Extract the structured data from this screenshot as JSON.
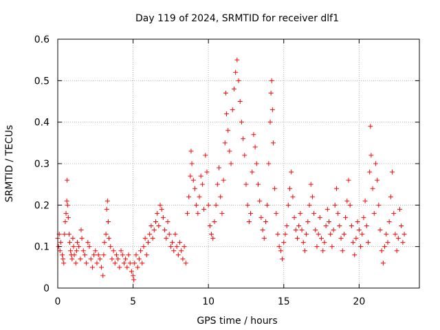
{
  "chart_data": {
    "type": "scatter",
    "title": "Day 119 of 2024, SRMTID for receiver dlf1",
    "xlabel": "GPS time / hours",
    "ylabel": "SRMTID / TECUs",
    "xlim": [
      0,
      24
    ],
    "ylim": [
      0,
      0.6
    ],
    "xticks": [
      0,
      5,
      10,
      15,
      20
    ],
    "xtick_labels": [
      "0",
      "5",
      "10",
      "15",
      "20"
    ],
    "yticks": [
      0,
      0.1,
      0.2,
      0.3,
      0.4,
      0.5,
      0.6
    ],
    "ytick_labels": [
      "0",
      "0.1",
      "0.2",
      "0.3",
      "0.4",
      "0.5",
      "0.6"
    ],
    "grid": true,
    "marker": "+",
    "color": "#ff0000",
    "x_range_of_data": [
      0,
      23
    ],
    "series": [
      {
        "name": "SRMTID",
        "points": [
          [
            0.0,
            0.12
          ],
          [
            0.05,
            0.1
          ],
          [
            0.1,
            0.13
          ],
          [
            0.15,
            0.09
          ],
          [
            0.2,
            0.11
          ],
          [
            0.3,
            0.08
          ],
          [
            0.35,
            0.07
          ],
          [
            0.4,
            0.06
          ],
          [
            0.45,
            0.13
          ],
          [
            0.5,
            0.16
          ],
          [
            0.55,
            0.18
          ],
          [
            0.6,
            0.21
          ],
          [
            0.62,
            0.26
          ],
          [
            0.65,
            0.2
          ],
          [
            0.7,
            0.17
          ],
          [
            0.75,
            0.13
          ],
          [
            0.8,
            0.11
          ],
          [
            0.85,
            0.09
          ],
          [
            0.9,
            0.08
          ],
          [
            0.95,
            0.07
          ],
          [
            1.0,
            0.12
          ],
          [
            1.05,
            0.1
          ],
          [
            1.1,
            0.08
          ],
          [
            1.2,
            0.06
          ],
          [
            1.25,
            0.09
          ],
          [
            1.3,
            0.11
          ],
          [
            1.4,
            0.1
          ],
          [
            1.5,
            0.07
          ],
          [
            1.55,
            0.14
          ],
          [
            1.6,
            0.12
          ],
          [
            1.7,
            0.09
          ],
          [
            1.8,
            0.08
          ],
          [
            1.9,
            0.06
          ],
          [
            2.0,
            0.11
          ],
          [
            2.1,
            0.1
          ],
          [
            2.2,
            0.07
          ],
          [
            2.3,
            0.05
          ],
          [
            2.4,
            0.08
          ],
          [
            2.5,
            0.09
          ],
          [
            2.6,
            0.06
          ],
          [
            2.7,
            0.08
          ],
          [
            2.8,
            0.07
          ],
          [
            2.9,
            0.05
          ],
          [
            3.0,
            0.03
          ],
          [
            3.05,
            0.08
          ],
          [
            3.1,
            0.11
          ],
          [
            3.2,
            0.13
          ],
          [
            3.25,
            0.19
          ],
          [
            3.3,
            0.21
          ],
          [
            3.35,
            0.16
          ],
          [
            3.4,
            0.12
          ],
          [
            3.5,
            0.1
          ],
          [
            3.6,
            0.07
          ],
          [
            3.7,
            0.09
          ],
          [
            3.8,
            0.06
          ],
          [
            3.9,
            0.08
          ],
          [
            4.0,
            0.07
          ],
          [
            4.1,
            0.05
          ],
          [
            4.2,
            0.09
          ],
          [
            4.3,
            0.08
          ],
          [
            4.4,
            0.06
          ],
          [
            4.5,
            0.07
          ],
          [
            4.6,
            0.05
          ],
          [
            4.7,
            0.08
          ],
          [
            4.8,
            0.06
          ],
          [
            4.9,
            0.04
          ],
          [
            5.0,
            0.03
          ],
          [
            5.05,
            0.02
          ],
          [
            5.1,
            0.06
          ],
          [
            5.2,
            0.08
          ],
          [
            5.3,
            0.05
          ],
          [
            5.4,
            0.07
          ],
          [
            5.5,
            0.09
          ],
          [
            5.6,
            0.06
          ],
          [
            5.7,
            0.1
          ],
          [
            5.8,
            0.12
          ],
          [
            5.9,
            0.08
          ],
          [
            6.0,
            0.11
          ],
          [
            6.1,
            0.13
          ],
          [
            6.2,
            0.15
          ],
          [
            6.3,
            0.12
          ],
          [
            6.4,
            0.14
          ],
          [
            6.5,
            0.16
          ],
          [
            6.6,
            0.18
          ],
          [
            6.7,
            0.15
          ],
          [
            6.8,
            0.2
          ],
          [
            6.9,
            0.19
          ],
          [
            7.0,
            0.17
          ],
          [
            7.1,
            0.14
          ],
          [
            7.2,
            0.12
          ],
          [
            7.3,
            0.16
          ],
          [
            7.4,
            0.13
          ],
          [
            7.5,
            0.1
          ],
          [
            7.6,
            0.11
          ],
          [
            7.7,
            0.09
          ],
          [
            7.8,
            0.13
          ],
          [
            7.9,
            0.1
          ],
          [
            8.0,
            0.08
          ],
          [
            8.1,
            0.11
          ],
          [
            8.2,
            0.09
          ],
          [
            8.3,
            0.07
          ],
          [
            8.4,
            0.1
          ],
          [
            8.5,
            0.06
          ],
          [
            8.6,
            0.18
          ],
          [
            8.7,
            0.22
          ],
          [
            8.8,
            0.27
          ],
          [
            8.85,
            0.33
          ],
          [
            8.9,
            0.3
          ],
          [
            9.0,
            0.26
          ],
          [
            9.1,
            0.24
          ],
          [
            9.2,
            0.2
          ],
          [
            9.3,
            0.18
          ],
          [
            9.4,
            0.22
          ],
          [
            9.5,
            0.27
          ],
          [
            9.6,
            0.25
          ],
          [
            9.7,
            0.19
          ],
          [
            9.8,
            0.32
          ],
          [
            9.9,
            0.28
          ],
          [
            10.0,
            0.2
          ],
          [
            10.1,
            0.15
          ],
          [
            10.2,
            0.13
          ],
          [
            10.3,
            0.12
          ],
          [
            10.4,
            0.16
          ],
          [
            10.5,
            0.2
          ],
          [
            10.6,
            0.25
          ],
          [
            10.7,
            0.29
          ],
          [
            10.8,
            0.22
          ],
          [
            10.9,
            0.18
          ],
          [
            11.0,
            0.26
          ],
          [
            11.1,
            0.35
          ],
          [
            11.15,
            0.47
          ],
          [
            11.2,
            0.42
          ],
          [
            11.3,
            0.38
          ],
          [
            11.4,
            0.33
          ],
          [
            11.5,
            0.3
          ],
          [
            11.6,
            0.43
          ],
          [
            11.7,
            0.48
          ],
          [
            11.8,
            0.52
          ],
          [
            11.9,
            0.55
          ],
          [
            12.0,
            0.5
          ],
          [
            12.1,
            0.45
          ],
          [
            12.2,
            0.4
          ],
          [
            12.3,
            0.36
          ],
          [
            12.4,
            0.32
          ],
          [
            12.5,
            0.25
          ],
          [
            12.6,
            0.2
          ],
          [
            12.7,
            0.16
          ],
          [
            12.8,
            0.18
          ],
          [
            12.9,
            0.28
          ],
          [
            13.0,
            0.37
          ],
          [
            13.1,
            0.34
          ],
          [
            13.2,
            0.3
          ],
          [
            13.3,
            0.25
          ],
          [
            13.4,
            0.21
          ],
          [
            13.5,
            0.17
          ],
          [
            13.6,
            0.14
          ],
          [
            13.7,
            0.12
          ],
          [
            13.8,
            0.16
          ],
          [
            13.9,
            0.2
          ],
          [
            14.0,
            0.3
          ],
          [
            14.1,
            0.4
          ],
          [
            14.15,
            0.47
          ],
          [
            14.2,
            0.5
          ],
          [
            14.25,
            0.43
          ],
          [
            14.3,
            0.35
          ],
          [
            14.4,
            0.24
          ],
          [
            14.5,
            0.18
          ],
          [
            14.6,
            0.13
          ],
          [
            14.7,
            0.1
          ],
          [
            14.8,
            0.09
          ],
          [
            14.9,
            0.07
          ],
          [
            15.0,
            0.11
          ],
          [
            15.1,
            0.13
          ],
          [
            15.2,
            0.15
          ],
          [
            15.3,
            0.2
          ],
          [
            15.4,
            0.24
          ],
          [
            15.5,
            0.28
          ],
          [
            15.6,
            0.22
          ],
          [
            15.7,
            0.17
          ],
          [
            15.8,
            0.14
          ],
          [
            15.9,
            0.12
          ],
          [
            16.0,
            0.15
          ],
          [
            16.1,
            0.18
          ],
          [
            16.2,
            0.14
          ],
          [
            16.3,
            0.11
          ],
          [
            16.4,
            0.09
          ],
          [
            16.5,
            0.13
          ],
          [
            16.6,
            0.16
          ],
          [
            16.7,
            0.2
          ],
          [
            16.8,
            0.25
          ],
          [
            16.9,
            0.22
          ],
          [
            17.0,
            0.18
          ],
          [
            17.1,
            0.14
          ],
          [
            17.2,
            0.1
          ],
          [
            17.3,
            0.13
          ],
          [
            17.4,
            0.17
          ],
          [
            17.5,
            0.12
          ],
          [
            17.6,
            0.09
          ],
          [
            17.7,
            0.11
          ],
          [
            17.8,
            0.15
          ],
          [
            17.9,
            0.19
          ],
          [
            18.0,
            0.16
          ],
          [
            18.1,
            0.13
          ],
          [
            18.2,
            0.1
          ],
          [
            18.3,
            0.14
          ],
          [
            18.4,
            0.2
          ],
          [
            18.5,
            0.24
          ],
          [
            18.6,
            0.18
          ],
          [
            18.7,
            0.15
          ],
          [
            18.8,
            0.12
          ],
          [
            18.9,
            0.09
          ],
          [
            19.0,
            0.13
          ],
          [
            19.1,
            0.17
          ],
          [
            19.2,
            0.21
          ],
          [
            19.3,
            0.26
          ],
          [
            19.4,
            0.2
          ],
          [
            19.5,
            0.15
          ],
          [
            19.6,
            0.11
          ],
          [
            19.7,
            0.08
          ],
          [
            19.8,
            0.12
          ],
          [
            19.9,
            0.16
          ],
          [
            20.0,
            0.14
          ],
          [
            20.1,
            0.1
          ],
          [
            20.2,
            0.13
          ],
          [
            20.3,
            0.17
          ],
          [
            20.4,
            0.21
          ],
          [
            20.5,
            0.15
          ],
          [
            20.6,
            0.11
          ],
          [
            20.7,
            0.28
          ],
          [
            20.75,
            0.39
          ],
          [
            20.8,
            0.32
          ],
          [
            20.9,
            0.24
          ],
          [
            21.0,
            0.18
          ],
          [
            21.1,
            0.3
          ],
          [
            21.2,
            0.26
          ],
          [
            21.3,
            0.2
          ],
          [
            21.4,
            0.14
          ],
          [
            21.5,
            0.09
          ],
          [
            21.6,
            0.06
          ],
          [
            21.7,
            0.1
          ],
          [
            21.8,
            0.13
          ],
          [
            21.9,
            0.11
          ],
          [
            22.0,
            0.16
          ],
          [
            22.1,
            0.22
          ],
          [
            22.2,
            0.28
          ],
          [
            22.3,
            0.18
          ],
          [
            22.4,
            0.13
          ],
          [
            22.5,
            0.09
          ],
          [
            22.6,
            0.12
          ],
          [
            22.7,
            0.19
          ],
          [
            22.8,
            0.15
          ],
          [
            22.9,
            0.11
          ],
          [
            23.0,
            0.13
          ]
        ]
      }
    ]
  }
}
